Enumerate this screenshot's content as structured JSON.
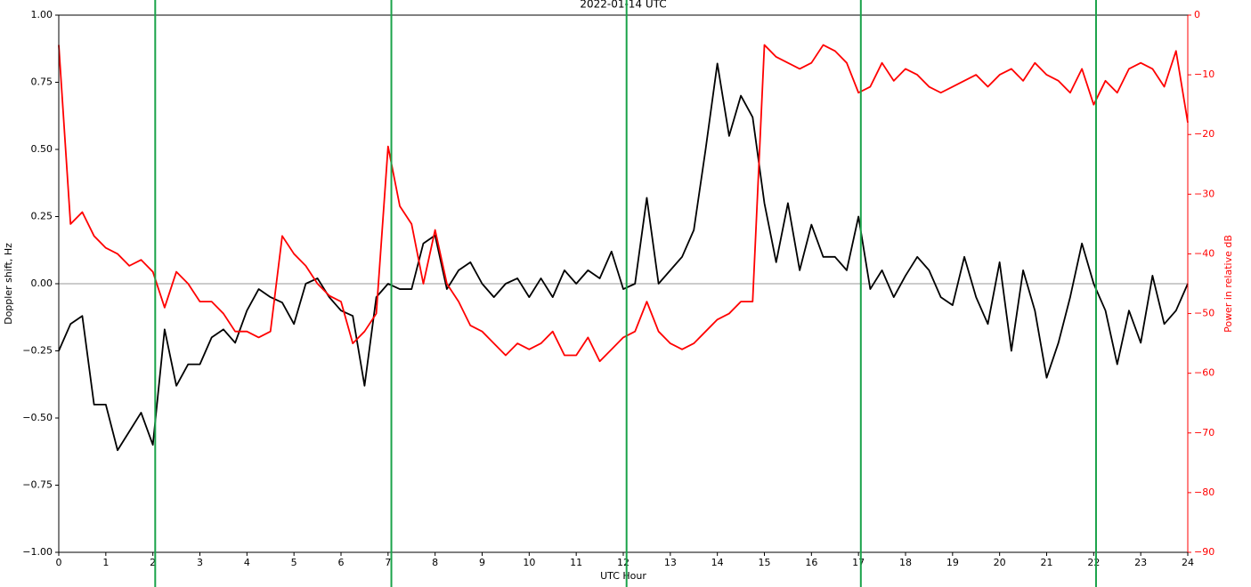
{
  "chart_data": {
    "type": "line",
    "title": "2022-01-14  UTC",
    "x_label": "UTC Hour",
    "y_label": "Doppler shift, Hz",
    "y2_label": "Power in relative dB",
    "y2_color": "#ff0000",
    "x": [
      0,
      0.25,
      0.5,
      0.75,
      1,
      1.25,
      1.5,
      1.75,
      2,
      2.25,
      2.5,
      2.75,
      3,
      3.25,
      3.5,
      3.75,
      4,
      4.25,
      4.5,
      4.75,
      5,
      5.25,
      5.5,
      5.75,
      6,
      6.25,
      6.5,
      6.75,
      7,
      7.25,
      7.5,
      7.75,
      8,
      8.25,
      8.5,
      8.75,
      9,
      9.25,
      9.5,
      9.75,
      10,
      10.25,
      10.5,
      10.75,
      11,
      11.25,
      11.5,
      11.75,
      12,
      12.25,
      12.5,
      12.75,
      13,
      13.25,
      13.5,
      13.75,
      14,
      14.25,
      14.5,
      14.75,
      15,
      15.25,
      15.5,
      15.75,
      16,
      16.25,
      16.5,
      16.75,
      17,
      17.25,
      17.5,
      17.75,
      18,
      18.25,
      18.5,
      18.75,
      19,
      19.25,
      19.5,
      19.75,
      20,
      20.25,
      20.5,
      20.75,
      21,
      21.25,
      21.5,
      21.75,
      22,
      22.25,
      22.5,
      22.75,
      23,
      23.25,
      23.5,
      23.75,
      24
    ],
    "series": [
      {
        "color": "#000000",
        "axis": "y",
        "values": [
          -0.25,
          -0.15,
          -0.12,
          -0.45,
          -0.45,
          -0.62,
          -0.55,
          -0.48,
          -0.6,
          -0.17,
          -0.38,
          -0.3,
          -0.3,
          -0.2,
          -0.17,
          -0.22,
          -0.1,
          -0.02,
          -0.05,
          -0.07,
          -0.15,
          0.0,
          0.02,
          -0.05,
          -0.1,
          -0.12,
          -0.38,
          -0.05,
          0.0,
          -0.02,
          -0.02,
          0.15,
          0.18,
          -0.02,
          0.05,
          0.08,
          0.0,
          -0.05,
          0.0,
          0.02,
          -0.05,
          0.02,
          -0.05,
          0.05,
          0.0,
          0.05,
          0.02,
          0.12,
          -0.02,
          0.0,
          0.32,
          0.0,
          0.05,
          0.1,
          0.2,
          0.5,
          0.82,
          0.55,
          0.7,
          0.62,
          0.3,
          0.08,
          0.3,
          0.05,
          0.22,
          0.1,
          0.1,
          0.05,
          0.25,
          -0.02,
          0.05,
          -0.05,
          0.03,
          0.1,
          0.05,
          -0.05,
          -0.08,
          0.1,
          -0.05,
          -0.15,
          0.08,
          -0.25,
          0.05,
          -0.1,
          -0.35,
          -0.22,
          -0.05,
          0.15,
          0.0,
          -0.1,
          -0.3,
          -0.1,
          -0.22,
          0.03,
          -0.15,
          -0.1,
          0.0
        ]
      },
      {
        "color": "#ff0000",
        "axis": "y2",
        "values": [
          -5,
          -35,
          -33,
          -37,
          -39,
          -40,
          -42,
          -41,
          -43,
          -49,
          -43,
          -45,
          -48,
          -48,
          -50,
          -53,
          -53,
          -54,
          -53,
          -37,
          -40,
          -42,
          -45,
          -47,
          -48,
          -55,
          -53,
          -50,
          -22,
          -32,
          -35,
          -45,
          -36,
          -45,
          -48,
          -52,
          -53,
          -55,
          -57,
          -55,
          -56,
          -55,
          -53,
          -57,
          -57,
          -54,
          -58,
          -56,
          -54,
          -53,
          -48,
          -53,
          -55,
          -56,
          -55,
          -53,
          -51,
          -50,
          -48,
          -48,
          -5,
          -7,
          -8,
          -9,
          -8,
          -5,
          -6,
          -8,
          -13,
          -12,
          -8,
          -11,
          -9,
          -10,
          -12,
          -13,
          -12,
          -11,
          -10,
          -12,
          -10,
          -9,
          -11,
          -8,
          -10,
          -11,
          -13,
          -9,
          -15,
          -11,
          -13,
          -9,
          -8,
          -9,
          -12,
          -6,
          -18
        ]
      }
    ],
    "xlim": [
      0,
      24
    ],
    "xticks": [
      0,
      1,
      2,
      3,
      4,
      5,
      6,
      7,
      8,
      9,
      10,
      11,
      12,
      13,
      14,
      15,
      16,
      17,
      18,
      19,
      20,
      21,
      22,
      23,
      24
    ],
    "ylim": [
      -1,
      1
    ],
    "yticks": [
      {
        "value": -1,
        "label": "−1.00"
      },
      {
        "value": -0.75,
        "label": "−0.75"
      },
      {
        "value": -0.5,
        "label": "−0.50"
      },
      {
        "value": -0.25,
        "label": "−0.25"
      },
      {
        "value": 0,
        "label": "0.00"
      },
      {
        "value": 0.25,
        "label": "0.25"
      },
      {
        "value": 0.5,
        "label": "0.50"
      },
      {
        "value": 0.75,
        "label": "0.75"
      },
      {
        "value": 1,
        "label": "1.00"
      }
    ],
    "y2lim": [
      -90,
      0
    ],
    "y2ticks": [
      {
        "value": -90,
        "label": "−90"
      },
      {
        "value": -80,
        "label": "−80"
      },
      {
        "value": -70,
        "label": "−70"
      },
      {
        "value": -60,
        "label": "−60"
      },
      {
        "value": -50,
        "label": "−50"
      },
      {
        "value": -40,
        "label": "−40"
      },
      {
        "value": -30,
        "label": "−30"
      },
      {
        "value": -20,
        "label": "−20"
      },
      {
        "value": -10,
        "label": "−10"
      },
      0
    ],
    "hlines": [
      0
    ],
    "hline_color": "#999999",
    "vlines": [
      2.05,
      7.07,
      12.07,
      17.05,
      22.05
    ],
    "vline_color": "#1aa34a"
  }
}
